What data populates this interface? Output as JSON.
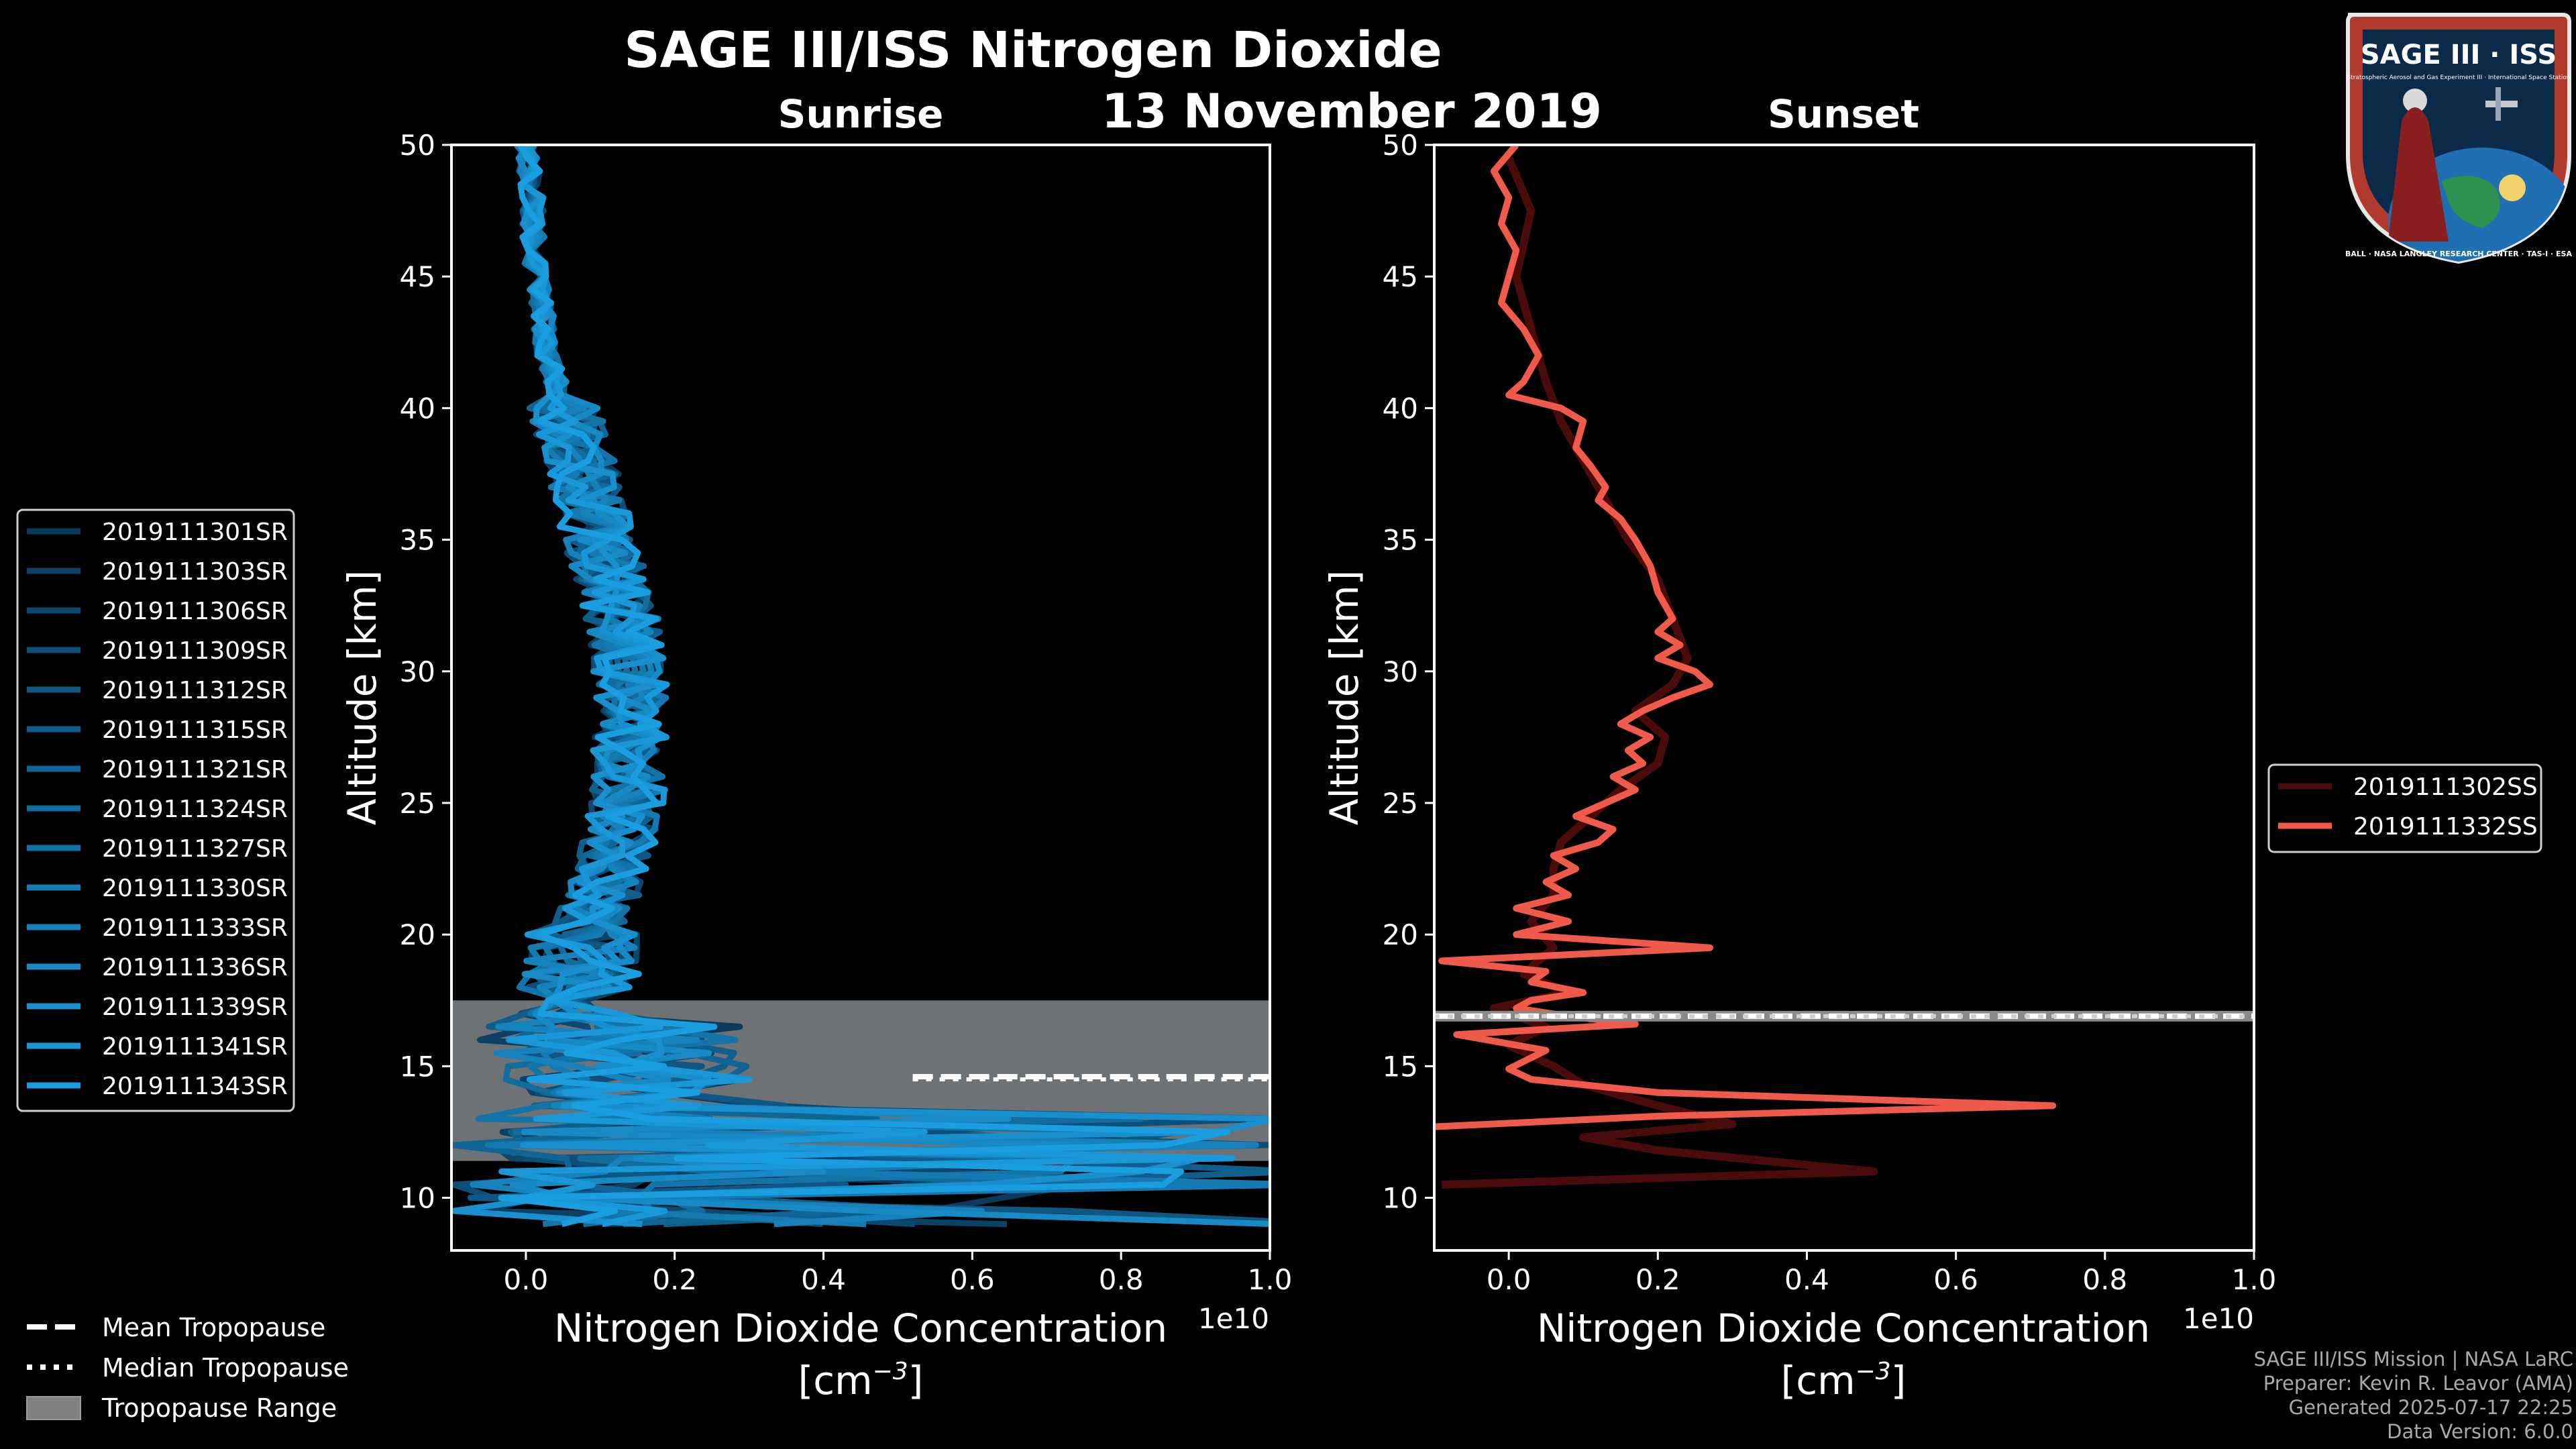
{
  "title": "SAGE III/ISS Nitrogen Dioxide",
  "date": "13 November 2019",
  "logo": {
    "text": "SAGE III · ISS",
    "subtitle": "Stratospheric Aerosol and Gas Experiment III · International Space Station",
    "ring_text": "BALL · NASA LANGLEY RESEARCH CENTER · TAS-I · ESA",
    "colors": {
      "border": "#c0392b",
      "field": "#0b2a4a",
      "ring": "#b03a2e"
    }
  },
  "footer": {
    "line1": "SAGE III/ISS Mission | NASA LaRC",
    "line2": "Preparer: Kevin R. Leavor (AMA)",
    "line3": "Generated 2025-07-17 22:25",
    "line4": "Data Version: 6.0.0"
  },
  "tropopause_legend": {
    "mean": "Mean Tropopause",
    "median": "Median Tropopause",
    "range": "Tropopause Range"
  },
  "chart_data": [
    {
      "type": "line",
      "panel": "sunrise",
      "title": "Sunrise",
      "xlabel": "Nitrogen Dioxide Concentration",
      "xlabel_units": "[cm",
      "xlabel_exp": "−3",
      "xlabel_close": "]",
      "ylabel": "Altitude [km]",
      "x_scale_label": "1e10",
      "xlim": [
        -0.1,
        1.0
      ],
      "ylim": [
        8,
        50
      ],
      "xticks": [
        0.0,
        0.2,
        0.4,
        0.6,
        0.8,
        1.0
      ],
      "xtick_labels": [
        "0.0",
        "0.2",
        "0.4",
        "0.6",
        "0.8",
        "1.0"
      ],
      "yticks": [
        10,
        15,
        20,
        25,
        30,
        35,
        40,
        45,
        50
      ],
      "ytick_labels": [
        "10",
        "15",
        "20",
        "25",
        "30",
        "35",
        "40",
        "45",
        "50"
      ],
      "tropopause": {
        "mean": 14.6,
        "median": 14.5,
        "range": [
          11.4,
          17.5
        ],
        "mean_xstart": 0.52
      },
      "color_dark": "#0a3a5c",
      "color_light": "#1b9ee0",
      "series": [
        {
          "name": "2019111301SR",
          "seed": 1
        },
        {
          "name": "2019111303SR",
          "seed": 2
        },
        {
          "name": "2019111306SR",
          "seed": 3
        },
        {
          "name": "2019111309SR",
          "seed": 4
        },
        {
          "name": "2019111312SR",
          "seed": 5
        },
        {
          "name": "2019111315SR",
          "seed": 6
        },
        {
          "name": "2019111321SR",
          "seed": 7
        },
        {
          "name": "2019111324SR",
          "seed": 8
        },
        {
          "name": "2019111327SR",
          "seed": 9
        },
        {
          "name": "2019111330SR",
          "seed": 10
        },
        {
          "name": "2019111333SR",
          "seed": 11
        },
        {
          "name": "2019111336SR",
          "seed": 12
        },
        {
          "name": "2019111339SR",
          "seed": 13
        },
        {
          "name": "2019111341SR",
          "seed": 14
        },
        {
          "name": "2019111343SR",
          "seed": 15
        }
      ],
      "mean_profile": [
        [
          50,
          0.0
        ],
        [
          48,
          0.01
        ],
        [
          46,
          0.01
        ],
        [
          44,
          0.02
        ],
        [
          42,
          0.03
        ],
        [
          40,
          0.05
        ],
        [
          38,
          0.07
        ],
        [
          36,
          0.09
        ],
        [
          34,
          0.11
        ],
        [
          32,
          0.13
        ],
        [
          30,
          0.14
        ],
        [
          28,
          0.14
        ],
        [
          26,
          0.14
        ],
        [
          24,
          0.13
        ],
        [
          22,
          0.11
        ],
        [
          20,
          0.08
        ],
        [
          18,
          0.07
        ],
        [
          16,
          0.06
        ],
        [
          14,
          0.1
        ],
        [
          12,
          0.2
        ],
        [
          10,
          0.3
        ],
        [
          9,
          0.4
        ]
      ]
    },
    {
      "type": "line",
      "panel": "sunset",
      "title": "Sunset",
      "xlabel": "Nitrogen Dioxide Concentration",
      "xlabel_units": "[cm",
      "xlabel_exp": "−3",
      "xlabel_close": "]",
      "ylabel": "Altitude [km]",
      "x_scale_label": "1e10",
      "xlim": [
        -0.1,
        1.0
      ],
      "ylim": [
        8,
        50
      ],
      "xticks": [
        0.0,
        0.2,
        0.4,
        0.6,
        0.8,
        1.0
      ],
      "xtick_labels": [
        "0.0",
        "0.2",
        "0.4",
        "0.6",
        "0.8",
        "1.0"
      ],
      "yticks": [
        10,
        15,
        20,
        25,
        30,
        35,
        40,
        45,
        50
      ],
      "ytick_labels": [
        "10",
        "15",
        "20",
        "25",
        "30",
        "35",
        "40",
        "45",
        "50"
      ],
      "tropopause": {
        "mean": 16.9,
        "median": 16.9,
        "range": [
          16.8,
          17.0
        ]
      },
      "series": [
        {
          "name": "2019111302SS",
          "color": "#4a0b0b",
          "points": [
            [
              49.5,
              0.0
            ],
            [
              47.5,
              0.03
            ],
            [
              45.0,
              0.01
            ],
            [
              43.0,
              0.03
            ],
            [
              41.0,
              0.05
            ],
            [
              39.5,
              0.07
            ],
            [
              38.0,
              0.1
            ],
            [
              36.5,
              0.13
            ],
            [
              35.0,
              0.16
            ],
            [
              33.5,
              0.2
            ],
            [
              32.0,
              0.22
            ],
            [
              30.5,
              0.24
            ],
            [
              29.5,
              0.22
            ],
            [
              28.5,
              0.17
            ],
            [
              27.5,
              0.21
            ],
            [
              26.5,
              0.2
            ],
            [
              25.5,
              0.15
            ],
            [
              24.5,
              0.11
            ],
            [
              23.5,
              0.07
            ],
            [
              22.5,
              0.06
            ],
            [
              21.5,
              0.06
            ],
            [
              20.5,
              0.03
            ],
            [
              19.5,
              0.06
            ],
            [
              18.5,
              0.02
            ],
            [
              17.8,
              0.08
            ],
            [
              17.2,
              -0.02
            ],
            [
              16.5,
              0.05
            ],
            [
              15.8,
              0.0
            ],
            [
              15.0,
              0.06
            ],
            [
              14.3,
              0.1
            ],
            [
              13.5,
              0.2
            ],
            [
              12.8,
              0.3
            ],
            [
              12.3,
              0.1
            ],
            [
              11.8,
              0.2
            ],
            [
              11.0,
              0.49
            ],
            [
              10.5,
              -0.09
            ]
          ]
        },
        {
          "name": "2019111332SS",
          "color": "#f05a4a",
          "points": [
            [
              50.0,
              0.01
            ],
            [
              49.0,
              -0.02
            ],
            [
              48.0,
              0.0
            ],
            [
              47.0,
              -0.01
            ],
            [
              46.0,
              0.01
            ],
            [
              45.0,
              0.0
            ],
            [
              44.0,
              -0.01
            ],
            [
              43.0,
              0.02
            ],
            [
              42.5,
              0.03
            ],
            [
              42.0,
              0.04
            ],
            [
              41.0,
              0.02
            ],
            [
              40.5,
              0.0
            ],
            [
              40.0,
              0.07
            ],
            [
              39.5,
              0.1
            ],
            [
              38.5,
              0.09
            ],
            [
              37.8,
              0.11
            ],
            [
              37.0,
              0.13
            ],
            [
              36.5,
              0.12
            ],
            [
              35.8,
              0.15
            ],
            [
              35.0,
              0.17
            ],
            [
              34.0,
              0.19
            ],
            [
              33.0,
              0.2
            ],
            [
              32.0,
              0.22
            ],
            [
              31.5,
              0.2
            ],
            [
              31.0,
              0.23
            ],
            [
              30.5,
              0.2
            ],
            [
              30.0,
              0.25
            ],
            [
              29.5,
              0.27
            ],
            [
              29.0,
              0.22
            ],
            [
              28.5,
              0.18
            ],
            [
              28.0,
              0.15
            ],
            [
              27.5,
              0.19
            ],
            [
              27.0,
              0.16
            ],
            [
              26.5,
              0.18
            ],
            [
              26.0,
              0.14
            ],
            [
              25.5,
              0.17
            ],
            [
              25.0,
              0.13
            ],
            [
              24.5,
              0.09
            ],
            [
              24.0,
              0.14
            ],
            [
              23.5,
              0.12
            ],
            [
              23.0,
              0.06
            ],
            [
              22.5,
              0.09
            ],
            [
              22.0,
              0.05
            ],
            [
              21.5,
              0.08
            ],
            [
              21.0,
              0.01
            ],
            [
              20.5,
              0.08
            ],
            [
              20.0,
              0.01
            ],
            [
              19.5,
              0.27
            ],
            [
              19.0,
              -0.09
            ],
            [
              18.6,
              0.05
            ],
            [
              18.2,
              0.03
            ],
            [
              17.8,
              0.1
            ],
            [
              17.5,
              0.03
            ],
            [
              17.2,
              0.01
            ],
            [
              16.9,
              0.08
            ],
            [
              16.6,
              0.17
            ],
            [
              16.2,
              -0.07
            ],
            [
              15.6,
              0.05
            ],
            [
              14.9,
              0.0
            ],
            [
              14.5,
              0.03
            ],
            [
              14.0,
              0.2
            ],
            [
              13.5,
              0.73
            ],
            [
              13.1,
              0.2
            ],
            [
              12.7,
              -0.1
            ]
          ]
        }
      ]
    }
  ]
}
